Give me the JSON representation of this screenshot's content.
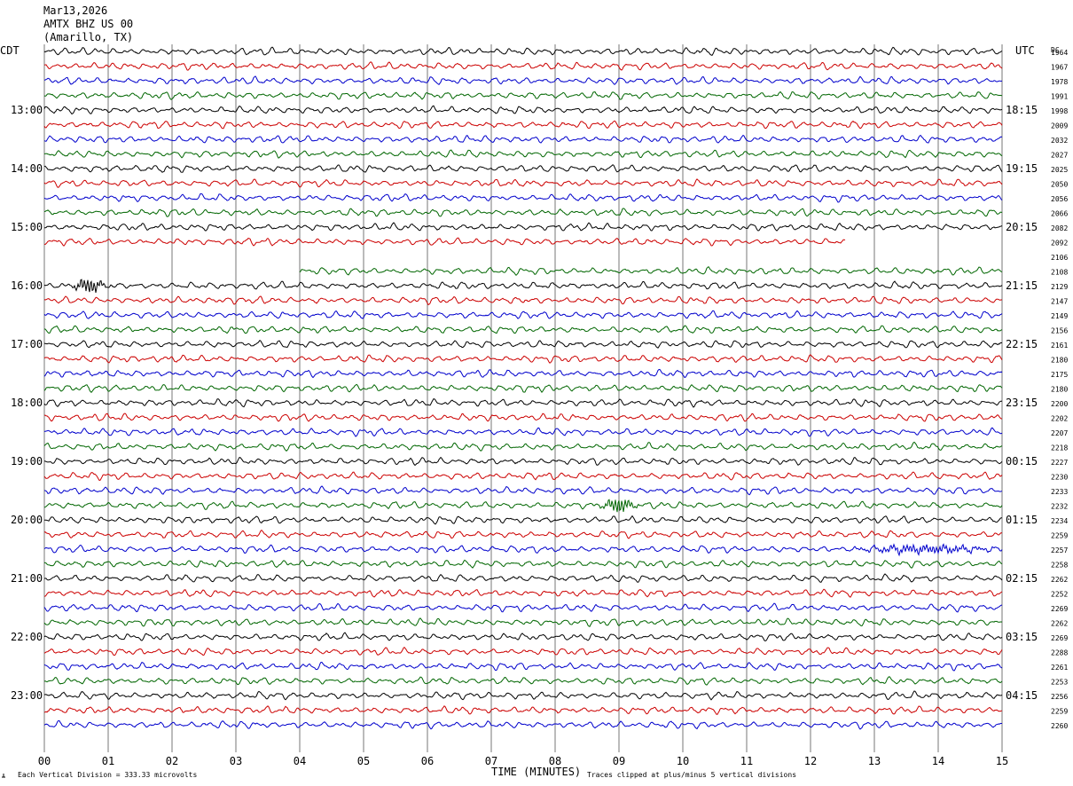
{
  "header": {
    "date": "Mar13,2026",
    "station": "AMTX BHZ US 00",
    "location": "(Amarillo, TX)"
  },
  "left_zone": "CDT",
  "right_zone": "UTC",
  "dc_label": "DC",
  "footer": {
    "scale_note": "Each Vertical Division =  333.33 microvolts",
    "x_title": "TIME (MINUTES)",
    "clip_note": "Traces clipped at plus/minus 5 vertical divisions"
  },
  "colors": [
    "#000000",
    "#cc0000",
    "#0000cc",
    "#006600"
  ],
  "chart_data": {
    "type": "line",
    "title": "AMTX BHZ US 00",
    "xlabel": "TIME (MINUTES)",
    "x_ticks": [
      "00",
      "01",
      "02",
      "03",
      "04",
      "05",
      "06",
      "07",
      "08",
      "09",
      "10",
      "11",
      "12",
      "13",
      "14",
      "15"
    ],
    "xlim": [
      0,
      15
    ],
    "rows_per_hour": 4,
    "row_count": 47,
    "left_hour_labels": [
      "13:00",
      "14:00",
      "15:00",
      "16:00",
      "17:00",
      "18:00",
      "19:00",
      "20:00",
      "21:00",
      "22:00",
      "23:00"
    ],
    "right_hour_labels": [
      "18:15",
      "19:15",
      "20:15",
      "21:15",
      "22:15",
      "23:15",
      "00:15",
      "01:15",
      "02:15",
      "03:15",
      "04:15"
    ],
    "dc_values": [
      "1964",
      "1967",
      "1978",
      "1991",
      "1998",
      "2009",
      "2032",
      "2027",
      "2025",
      "2050",
      "2056",
      "2066",
      "2082",
      "2092",
      "2106",
      "2108",
      "2129",
      "2147",
      "2149",
      "2156",
      "2161",
      "2180",
      "2175",
      "2180",
      "2200",
      "2202",
      "2207",
      "2218",
      "2227",
      "2230",
      "2233",
      "2232",
      "2234",
      "2259",
      "2257",
      "2258",
      "2262",
      "2252",
      "2269",
      "2262",
      "2269",
      "2288",
      "2261",
      "2253",
      "2256",
      "2259",
      "2260"
    ],
    "gap": {
      "row_start": 13,
      "x_start_min": 12.55,
      "row_end": 15,
      "x_end_min": 4.0
    },
    "events": [
      {
        "row": 16,
        "minute": 0.7,
        "amplitude": "high"
      },
      {
        "row": 31,
        "minute": 9.0,
        "amplitude": "high"
      },
      {
        "row": 34,
        "minute": 13.8,
        "amplitude": "medium"
      }
    ],
    "clip_divisions": 5,
    "division_microvolts": 333.33
  }
}
